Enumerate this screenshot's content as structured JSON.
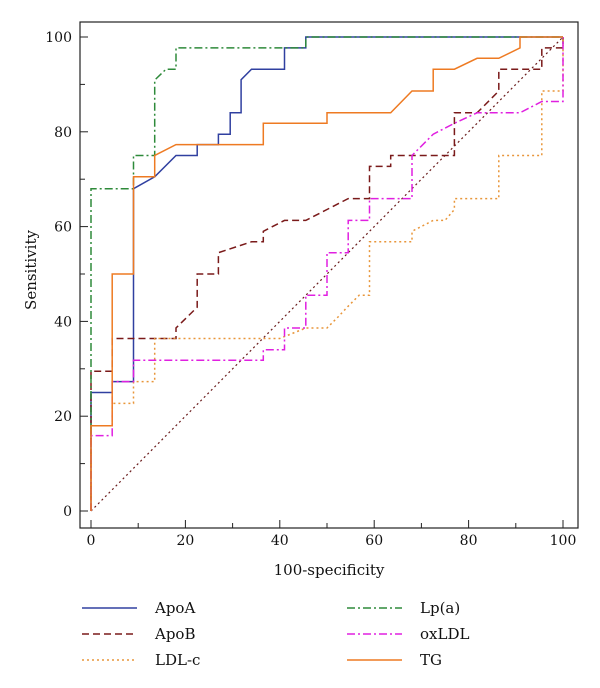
{
  "chart_data": {
    "type": "line",
    "title": "",
    "xlabel": "100-specificity",
    "ylabel": "Sensitivity",
    "xlim": [
      0,
      100
    ],
    "ylim": [
      0,
      100
    ],
    "xticks": [
      0,
      20,
      40,
      60,
      80,
      100
    ],
    "yticks": [
      0,
      20,
      40,
      60,
      80,
      100
    ],
    "grid": false,
    "legend_position": "bottom",
    "reference_line": {
      "x": [
        0,
        100
      ],
      "y": [
        0,
        100
      ],
      "color": "#6b1d1d",
      "style": "dotted"
    },
    "series": [
      {
        "name": "ApoA",
        "color": "#3040a0",
        "style": "solid",
        "x": [
          0,
          0,
          4.5,
          4.5,
          9,
          9,
          13.5,
          18,
          22.5,
          22.5,
          27,
          27,
          29.5,
          29.5,
          31.8,
          31.8,
          34,
          36.5,
          36.5,
          41,
          41,
          45.5,
          45.5,
          100
        ],
        "y": [
          0,
          25,
          25,
          27.3,
          27.3,
          68,
          70.5,
          75,
          75,
          77.3,
          77.3,
          79.5,
          79.5,
          84,
          84,
          91,
          93.2,
          93.2,
          93.2,
          93.2,
          97.7,
          97.7,
          100,
          100
        ]
      },
      {
        "name": "ApoB",
        "color": "#7a1a1a",
        "style": "dashed",
        "x": [
          0,
          0,
          4.5,
          4.5,
          18,
          18,
          22.5,
          22.5,
          27,
          27,
          34,
          36.5,
          36.5,
          41,
          45.5,
          50,
          54.5,
          59,
          59,
          63.5,
          63.5,
          68,
          72.5,
          77,
          77,
          81.8,
          86.4,
          86.4,
          95.5,
          95.5,
          100,
          100
        ],
        "y": [
          0,
          29.5,
          29.5,
          36.4,
          36.4,
          38.6,
          43,
          50,
          50,
          54.5,
          56.8,
          56.8,
          59,
          61.3,
          61.3,
          63.6,
          65.9,
          65.9,
          72.7,
          72.7,
          75,
          75,
          75,
          75,
          84,
          84,
          88.6,
          93.2,
          93.2,
          97.7,
          97.7,
          100
        ]
      },
      {
        "name": "LDL-c",
        "color": "#e8963a",
        "style": "dotted",
        "x": [
          0,
          0,
          4.5,
          4.5,
          9,
          9,
          13.5,
          13.5,
          40,
          45.5,
          50,
          52.3,
          54.5,
          56.8,
          59,
          59,
          68,
          68,
          72.5,
          75,
          77,
          77,
          86.4,
          86.4,
          95.5,
          95.5,
          100,
          100
        ],
        "y": [
          0,
          18,
          18,
          22.7,
          22.7,
          27.3,
          27.3,
          36.4,
          36.4,
          38.6,
          38.6,
          40.9,
          43.2,
          45.5,
          45.5,
          56.8,
          56.8,
          59,
          61.3,
          61.3,
          63.6,
          65.9,
          65.9,
          75,
          75,
          88.6,
          88.6,
          100
        ]
      },
      {
        "name": "Lp(a)",
        "color": "#2e8a3a",
        "style": "dashdot",
        "x": [
          0,
          0,
          9,
          9,
          13.5,
          13.5,
          15.9,
          18,
          18,
          41,
          45.5,
          45.5,
          100
        ],
        "y": [
          0,
          68,
          68,
          75,
          75,
          90.9,
          93.2,
          93.2,
          97.7,
          97.7,
          97.7,
          100,
          100
        ]
      },
      {
        "name": "oxLDL",
        "color": "#e020e0",
        "style": "dashdot",
        "x": [
          0,
          0,
          4.5,
          4.5,
          9,
          9,
          36.5,
          36.5,
          41,
          41,
          45.5,
          45.5,
          50,
          50,
          54.5,
          54.5,
          59,
          59,
          63.5,
          68,
          68,
          72.5,
          77,
          81.8,
          86.4,
          90.9,
          95.5,
          100,
          100
        ],
        "y": [
          0,
          15.9,
          15.9,
          27.3,
          27.3,
          31.8,
          31.8,
          34,
          34,
          38.6,
          38.6,
          45.5,
          45.5,
          54.5,
          54.5,
          61.3,
          61.3,
          65.9,
          65.9,
          65.9,
          75,
          79.5,
          81.8,
          84,
          84,
          84,
          86.4,
          86.4,
          100
        ]
      },
      {
        "name": "TG",
        "color": "#ee7a22",
        "style": "solid",
        "x": [
          0,
          0,
          4.5,
          4.5,
          9,
          9,
          13.5,
          13.5,
          18,
          36.5,
          36.5,
          50,
          50,
          63.5,
          68,
          72.5,
          72.5,
          77,
          81.8,
          86.4,
          90.9,
          90.9,
          100
        ],
        "y": [
          0,
          18,
          18,
          50,
          50,
          70.5,
          70.5,
          75,
          77.3,
          77.3,
          81.8,
          81.8,
          84,
          84,
          88.6,
          88.6,
          93.2,
          93.2,
          95.5,
          95.5,
          97.7,
          100,
          100
        ]
      }
    ]
  }
}
